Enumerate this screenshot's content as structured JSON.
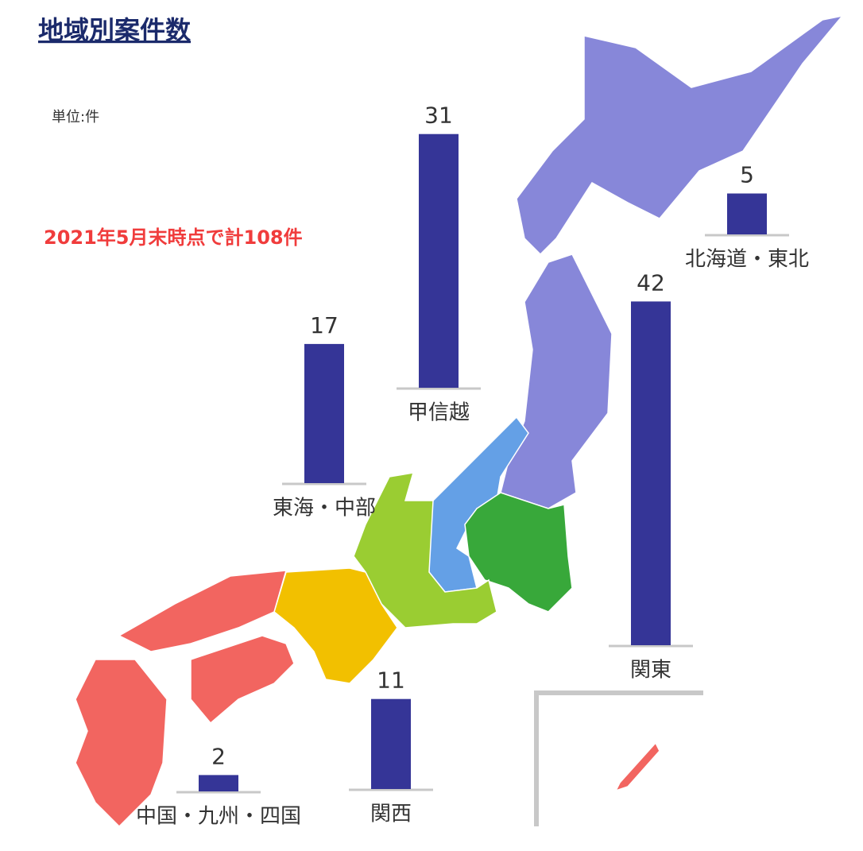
{
  "chart_data": {
    "type": "bar",
    "title": "地域別案件数",
    "unit_label": "単位:件",
    "annotation": "2021年5月末時点で計108件",
    "categories": [
      "北海道・東北",
      "甲信越",
      "東海・中部",
      "関東",
      "関西",
      "中国・九州・四国"
    ],
    "values": [
      5,
      31,
      17,
      42,
      11,
      2
    ],
    "color": "#353597"
  }
}
